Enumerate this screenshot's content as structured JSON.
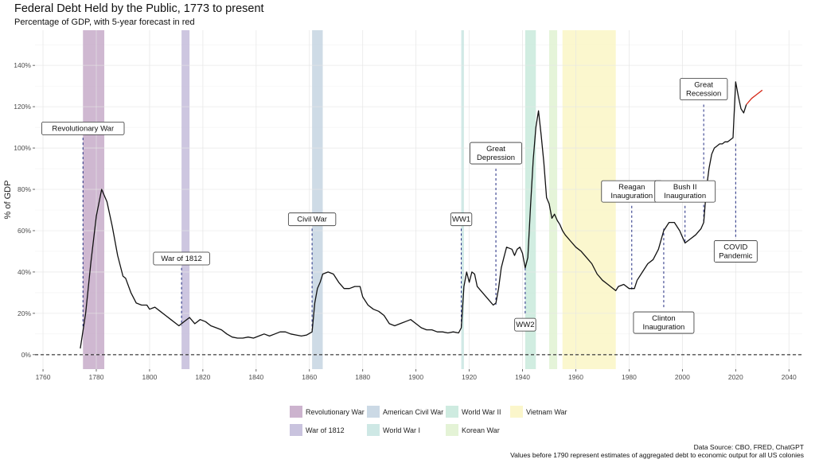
{
  "chart_data": {
    "type": "line",
    "title": "Federal Debt Held by the Public, 1773 to present",
    "subtitle": "Percentage of GDP, with 5-year forecast in red",
    "ylabel": "% of GDP",
    "xlabel": "",
    "xlim": [
      1757,
      2045
    ],
    "ylim": [
      -7,
      157
    ],
    "x_ticks": [
      1760,
      1780,
      1800,
      1820,
      1840,
      1860,
      1880,
      1900,
      1920,
      1940,
      1960,
      1980,
      2000,
      2020,
      2040
    ],
    "y_ticks": [
      0,
      20,
      40,
      60,
      80,
      100,
      120,
      140
    ],
    "y_tick_labels": [
      "0%",
      "20%",
      "40%",
      "60%",
      "80%",
      "100%",
      "120%",
      "140%"
    ],
    "grid": true,
    "zero_line": true,
    "legend_position": "bottom",
    "series": [
      {
        "name": "historical",
        "color": "#111111",
        "points": [
          [
            1774,
            3
          ],
          [
            1776,
            20
          ],
          [
            1778,
            45
          ],
          [
            1780,
            67
          ],
          [
            1782,
            80
          ],
          [
            1784,
            74
          ],
          [
            1786,
            62
          ],
          [
            1788,
            48
          ],
          [
            1790,
            38
          ],
          [
            1791,
            37
          ],
          [
            1793,
            30
          ],
          [
            1795,
            25
          ],
          [
            1797,
            24
          ],
          [
            1799,
            24
          ],
          [
            1800,
            22
          ],
          [
            1802,
            23
          ],
          [
            1804,
            21
          ],
          [
            1806,
            19
          ],
          [
            1808,
            17
          ],
          [
            1810,
            15
          ],
          [
            1811,
            14
          ],
          [
            1813,
            16
          ],
          [
            1815,
            18
          ],
          [
            1817,
            15
          ],
          [
            1819,
            17
          ],
          [
            1821,
            16
          ],
          [
            1823,
            14
          ],
          [
            1825,
            13
          ],
          [
            1827,
            12
          ],
          [
            1829,
            10
          ],
          [
            1831,
            8.5
          ],
          [
            1833,
            8
          ],
          [
            1835,
            8
          ],
          [
            1837,
            8.5
          ],
          [
            1839,
            8
          ],
          [
            1841,
            9
          ],
          [
            1843,
            10
          ],
          [
            1845,
            9
          ],
          [
            1847,
            10
          ],
          [
            1849,
            11
          ],
          [
            1851,
            11
          ],
          [
            1853,
            10
          ],
          [
            1855,
            9.5
          ],
          [
            1857,
            9
          ],
          [
            1859,
            9.5
          ],
          [
            1861,
            11
          ],
          [
            1862,
            25
          ],
          [
            1863,
            32
          ],
          [
            1864,
            35
          ],
          [
            1865,
            39
          ],
          [
            1867,
            40
          ],
          [
            1869,
            39
          ],
          [
            1871,
            35
          ],
          [
            1873,
            32
          ],
          [
            1875,
            32
          ],
          [
            1877,
            33
          ],
          [
            1879,
            33
          ],
          [
            1880,
            28
          ],
          [
            1882,
            24
          ],
          [
            1884,
            22
          ],
          [
            1886,
            21
          ],
          [
            1888,
            19
          ],
          [
            1890,
            15
          ],
          [
            1892,
            14
          ],
          [
            1894,
            15
          ],
          [
            1896,
            16
          ],
          [
            1898,
            17
          ],
          [
            1900,
            15
          ],
          [
            1902,
            13
          ],
          [
            1904,
            12
          ],
          [
            1906,
            12
          ],
          [
            1908,
            11
          ],
          [
            1910,
            11
          ],
          [
            1912,
            10.5
          ],
          [
            1914,
            11
          ],
          [
            1916,
            10.5
          ],
          [
            1917,
            13
          ],
          [
            1918,
            33
          ],
          [
            1919,
            40
          ],
          [
            1920,
            35
          ],
          [
            1921,
            40
          ],
          [
            1922,
            39
          ],
          [
            1923,
            33
          ],
          [
            1925,
            30
          ],
          [
            1927,
            27
          ],
          [
            1929,
            24
          ],
          [
            1930,
            25
          ],
          [
            1931,
            32
          ],
          [
            1932,
            42
          ],
          [
            1933,
            47
          ],
          [
            1934,
            52
          ],
          [
            1936,
            51
          ],
          [
            1937,
            48
          ],
          [
            1938,
            51
          ],
          [
            1939,
            52
          ],
          [
            1940,
            49
          ],
          [
            1941,
            42
          ],
          [
            1942,
            47
          ],
          [
            1943,
            72
          ],
          [
            1944,
            94
          ],
          [
            1945,
            110
          ],
          [
            1946,
            118
          ],
          [
            1947,
            106
          ],
          [
            1948,
            93
          ],
          [
            1949,
            76
          ],
          [
            1950,
            73
          ],
          [
            1951,
            66
          ],
          [
            1952,
            68
          ],
          [
            1953,
            65
          ],
          [
            1954,
            63
          ],
          [
            1955,
            60
          ],
          [
            1956,
            58
          ],
          [
            1958,
            55
          ],
          [
            1960,
            52
          ],
          [
            1962,
            50
          ],
          [
            1964,
            47
          ],
          [
            1966,
            44
          ],
          [
            1968,
            39
          ],
          [
            1970,
            36
          ],
          [
            1972,
            34
          ],
          [
            1974,
            32
          ],
          [
            1975,
            31
          ],
          [
            1976,
            33
          ],
          [
            1978,
            34
          ],
          [
            1980,
            32
          ],
          [
            1982,
            32
          ],
          [
            1983,
            36
          ],
          [
            1985,
            40
          ],
          [
            1987,
            44
          ],
          [
            1989,
            46
          ],
          [
            1991,
            51
          ],
          [
            1993,
            60
          ],
          [
            1995,
            64
          ],
          [
            1997,
            64
          ],
          [
            1999,
            60
          ],
          [
            2001,
            54
          ],
          [
            2003,
            56
          ],
          [
            2005,
            58
          ],
          [
            2007,
            61
          ],
          [
            2008,
            64
          ],
          [
            2009,
            80
          ],
          [
            2010,
            90
          ],
          [
            2011,
            97
          ],
          [
            2012,
            100
          ],
          [
            2013,
            101
          ],
          [
            2014,
            102
          ],
          [
            2015,
            102
          ],
          [
            2016,
            103
          ],
          [
            2017,
            103
          ],
          [
            2018,
            104
          ],
          [
            2019,
            105
          ],
          [
            2020,
            132
          ],
          [
            2021,
            125
          ],
          [
            2022,
            119
          ],
          [
            2023,
            117
          ],
          [
            2024,
            121
          ]
        ]
      },
      {
        "name": "forecast",
        "color": "#d62a1a",
        "points": [
          [
            2024,
            121
          ],
          [
            2026,
            124
          ],
          [
            2028,
            126
          ],
          [
            2030,
            128
          ]
        ]
      }
    ],
    "shaded_periods": [
      {
        "name": "Revolutionary War",
        "start": 1775,
        "end": 1783,
        "color": "#c3a6c6"
      },
      {
        "name": "War of 1812",
        "start": 1812,
        "end": 1815,
        "color": "#c0b8d8"
      },
      {
        "name": "American Civil War",
        "start": 1861,
        "end": 1865,
        "color": "#c2d2e0"
      },
      {
        "name": "World War I",
        "start": 1917,
        "end": 1918,
        "color": "#c5e4e0"
      },
      {
        "name": "World War II",
        "start": 1941,
        "end": 1945,
        "color": "#c6e8da"
      },
      {
        "name": "Korean War",
        "start": 1950,
        "end": 1953,
        "color": "#dff1cf"
      },
      {
        "name": "Vietnam War",
        "start": 1955,
        "end": 1975,
        "color": "#faf5c2"
      }
    ],
    "annotations": [
      {
        "lines": [
          "Revolutionary War"
        ],
        "x": 1775,
        "label_y": 109.5,
        "line_from": 105,
        "line_to": 13
      },
      {
        "lines": [
          "War of 1812"
        ],
        "x": 1812,
        "label_y": 46.5,
        "line_from": 42,
        "line_to": 14
      },
      {
        "lines": [
          "Civil War"
        ],
        "x": 1861,
        "label_y": 65.5,
        "line_from": 61,
        "line_to": 12
      },
      {
        "lines": [
          "WW1"
        ],
        "x": 1917,
        "label_y": 65.5,
        "line_from": 61,
        "line_to": 13
      },
      {
        "lines": [
          "Great",
          "Depression"
        ],
        "x": 1930,
        "label_y": 97.5,
        "line_from": 90,
        "line_to": 24
      },
      {
        "lines": [
          "WW2"
        ],
        "x": 1941,
        "label_y": 14.5,
        "line_from": 20,
        "line_to": 43
      },
      {
        "lines": [
          "Reagan",
          "Inauguration"
        ],
        "x": 1981,
        "label_y": 79,
        "line_from": 72,
        "line_to": 31
      },
      {
        "lines": [
          "Clinton",
          "Inauguration"
        ],
        "x": 1993,
        "label_y": 15.5,
        "line_from": 23,
        "line_to": 61
      },
      {
        "lines": [
          "Bush II",
          "Inauguration"
        ],
        "x": 2001,
        "label_y": 79,
        "line_from": 72,
        "line_to": 54
      },
      {
        "lines": [
          "Great",
          "Recession"
        ],
        "x": 2008,
        "label_y": 128.5,
        "line_from": 121,
        "line_to": 64
      },
      {
        "lines": [
          "COVID",
          "Pandemic"
        ],
        "x": 2020,
        "label_y": 50,
        "line_from": 57,
        "line_to": 103
      }
    ]
  },
  "legend": {
    "items": [
      {
        "label": "Revolutionary War",
        "color": "#c3a6c6"
      },
      {
        "label": "War of 1812",
        "color": "#c0b8d8"
      },
      {
        "label": "American Civil War",
        "color": "#c2d2e0"
      },
      {
        "label": "World War I",
        "color": "#c5e4e0"
      },
      {
        "label": "World War II",
        "color": "#c6e8da"
      },
      {
        "label": "Korean War",
        "color": "#dff1cf"
      },
      {
        "label": "Vietnam War",
        "color": "#faf5c2"
      }
    ]
  },
  "source": {
    "line1": "Data Source:  CBO, FRED, ChatGPT",
    "line2": "Values before 1790 represent estimates of aggregated debt to economic output for all US colonies"
  }
}
